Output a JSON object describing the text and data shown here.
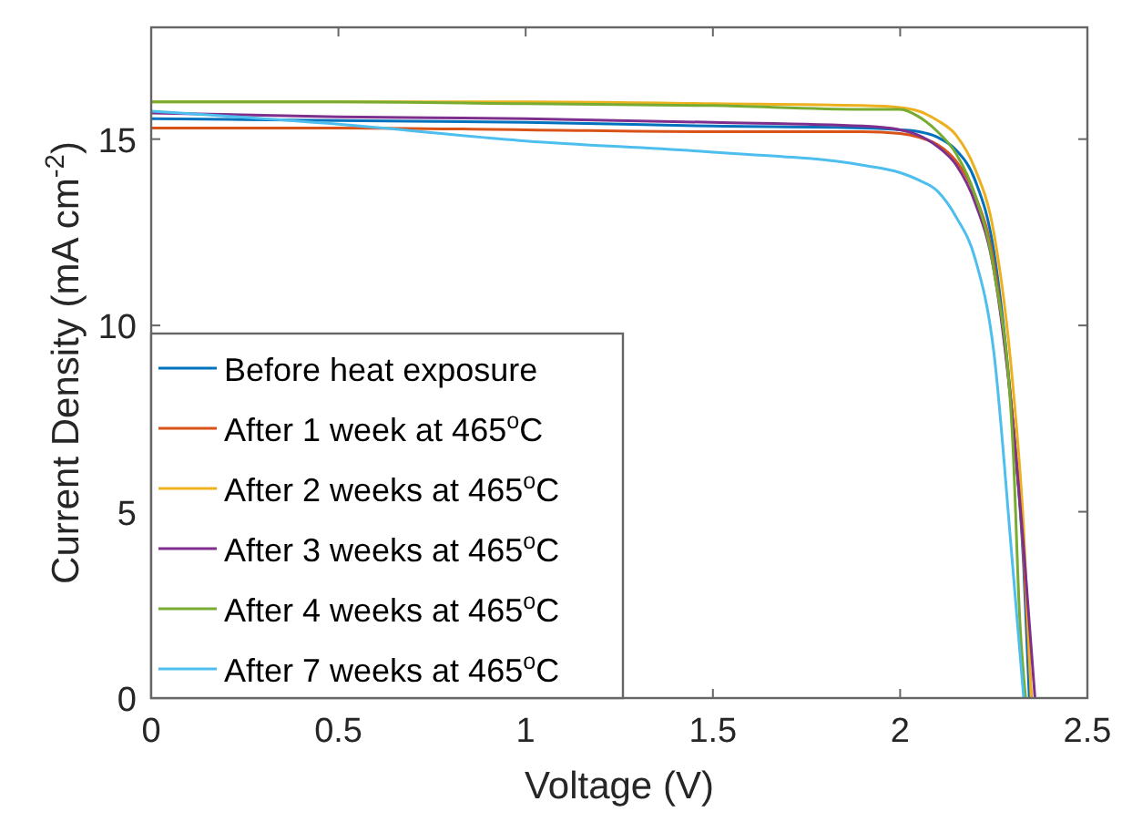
{
  "chart_data": {
    "type": "line",
    "xlabel": "Voltage (V)",
    "ylabel": "Current Density (mA cm$^{-2}$)",
    "xlim": [
      0,
      2.5
    ],
    "ylim": [
      0,
      18
    ],
    "xticks": [
      0,
      0.5,
      1,
      1.5,
      2,
      2.5
    ],
    "yticks": [
      0,
      5,
      10,
      15
    ],
    "grid": false,
    "legend": "bottom left",
    "marker": "none",
    "line_style": "solid",
    "series": [
      {
        "name": "Before heat exposure",
        "color": "#0072bd",
        "x": [
          0,
          0.5,
          1,
          1.5,
          1.9,
          2,
          2.05,
          2.1,
          2.15,
          2.2,
          2.25,
          2.3,
          2.33,
          2.345
        ],
        "values": [
          15.55,
          15.5,
          15.45,
          15.35,
          15.3,
          15.25,
          15.2,
          15.05,
          14.7,
          13.9,
          12,
          7.5,
          3.5,
          0
        ]
      },
      {
        "name": "After 1 week at 465$^{o}$C",
        "color": "#d95319",
        "x": [
          0,
          0.5,
          1,
          1.5,
          1.9,
          2,
          2.05,
          2.1,
          2.15,
          2.2,
          2.25,
          2.3,
          2.33,
          2.35
        ],
        "values": [
          15.3,
          15.3,
          15.25,
          15.2,
          15.2,
          15.15,
          15.05,
          14.85,
          14.4,
          13.5,
          11.7,
          7.5,
          3.8,
          0
        ]
      },
      {
        "name": "After 2 weeks at 465$^{o}$C",
        "color": "#edb120",
        "x": [
          0,
          0.5,
          1,
          1.5,
          1.9,
          2,
          2.05,
          2.1,
          2.15,
          2.2,
          2.25,
          2.3,
          2.33,
          2.35
        ],
        "values": [
          16,
          16,
          16,
          15.95,
          15.9,
          15.85,
          15.75,
          15.5,
          15.1,
          14.2,
          12.5,
          8.5,
          4.5,
          0
        ]
      },
      {
        "name": "After 3 weeks at 465$^{o}$C",
        "color": "#7e2f8e",
        "x": [
          0,
          0.5,
          1,
          1.5,
          1.9,
          2,
          2.05,
          2.1,
          2.15,
          2.2,
          2.25,
          2.3,
          2.33,
          2.36
        ],
        "values": [
          15.7,
          15.6,
          15.55,
          15.45,
          15.35,
          15.25,
          15.1,
          14.8,
          14.3,
          13.3,
          11.5,
          7.5,
          4,
          0
        ]
      },
      {
        "name": "After 4 weeks at 465$^{o}$C",
        "color": "#77ac30",
        "x": [
          0,
          0.5,
          1,
          1.5,
          1.9,
          2,
          2.05,
          2.1,
          2.15,
          2.2,
          2.25,
          2.3,
          2.32,
          2.335
        ],
        "values": [
          16,
          16,
          15.95,
          15.9,
          15.8,
          15.8,
          15.6,
          15.2,
          14.6,
          13.5,
          11.5,
          7,
          2,
          0
        ]
      },
      {
        "name": "After 7 weeks at 465$^{o}$C",
        "color": "#4dbeee",
        "x": [
          0,
          0.5,
          1,
          1.5,
          1.9,
          2,
          2.05,
          2.1,
          2.15,
          2.2,
          2.25,
          2.3,
          2.33
        ],
        "values": [
          15.75,
          15.4,
          14.95,
          14.65,
          14.3,
          14.1,
          13.9,
          13.6,
          12.9,
          11.8,
          9.3,
          3.6,
          0
        ]
      }
    ]
  }
}
